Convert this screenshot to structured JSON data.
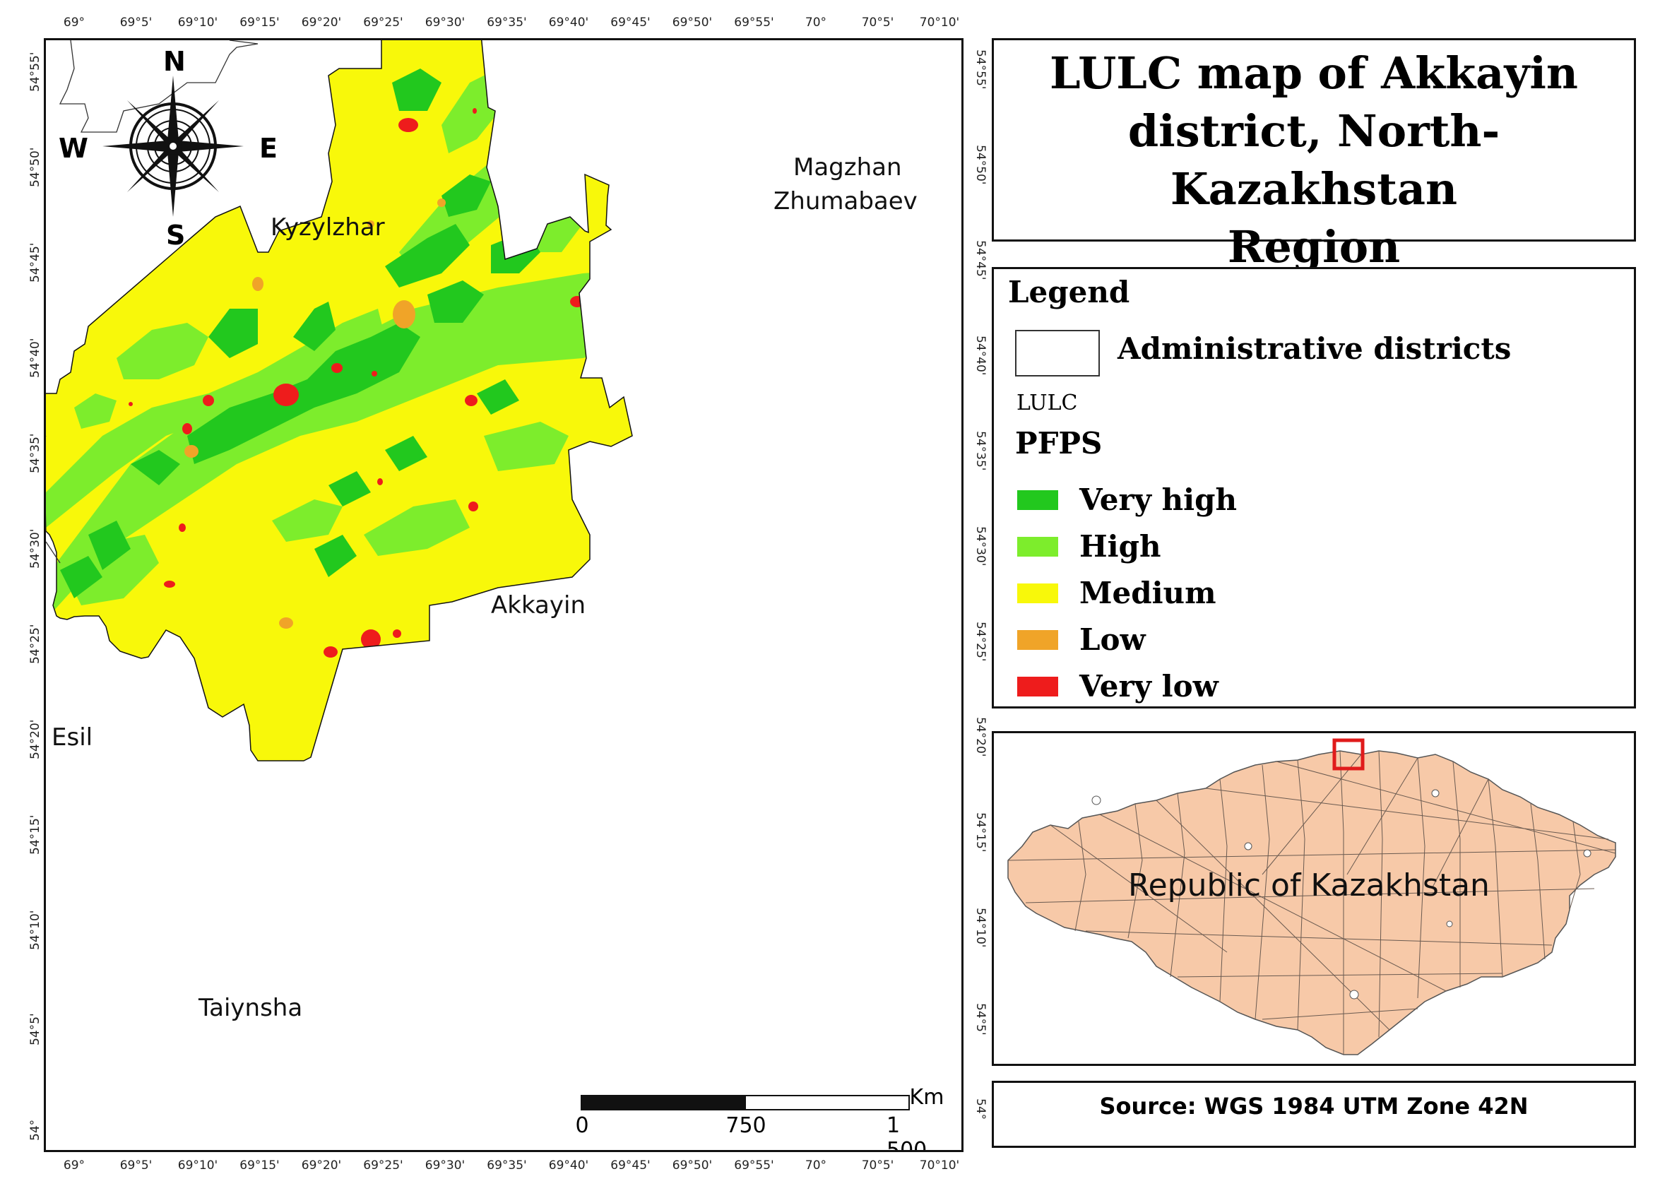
{
  "title": "LULC map of Akkayin district, North-Kazakhstan Region",
  "graticule": {
    "lon_labels": [
      "69°",
      "69°5'",
      "69°10'",
      "69°15'",
      "69°20'",
      "69°25'",
      "69°30'",
      "69°35'",
      "69°40'",
      "69°45'",
      "69°50'",
      "69°55'",
      "70°",
      "70°5'",
      "70°10'"
    ],
    "lat_labels": [
      "54°55'",
      "54°50'",
      "54°45'",
      "54°40'",
      "54°35'",
      "54°30'",
      "54°25'",
      "54°20'",
      "54°15'",
      "54°10'",
      "54°5'",
      "54°"
    ]
  },
  "places": {
    "kyzylzhar": "Kyzylzhar",
    "magzhan_1": "Magzhan",
    "magzhan_2": "Zhumabaev",
    "akkayin": "Akkayin",
    "esil": "Esil",
    "taiynsha": "Taiynsha"
  },
  "compass": {
    "n": "N",
    "s": "S",
    "e": "E",
    "w": "W"
  },
  "scale_bar": {
    "unit": "Km",
    "labels": [
      "0",
      "750",
      "1 500"
    ]
  },
  "legend": {
    "heading": "Legend",
    "districts_label": "Administrative districts",
    "lulc_label": "LULC",
    "pfps_label": "PFPS",
    "classes": [
      {
        "label": "Very high",
        "color": "#22c81e"
      },
      {
        "label": "High",
        "color": "#7ded2c"
      },
      {
        "label": "Medium",
        "color": "#f8f80a"
      },
      {
        "label": "Low",
        "color": "#f0a428"
      },
      {
        "label": "Very low",
        "color": "#ee1c1c"
      }
    ]
  },
  "inset": {
    "label": "Republic of Kazakhstan",
    "fill": "#f7c9a8",
    "highlight_color": "#e01b1b"
  },
  "source": "Source: WGS 1984 UTM Zone 42N"
}
